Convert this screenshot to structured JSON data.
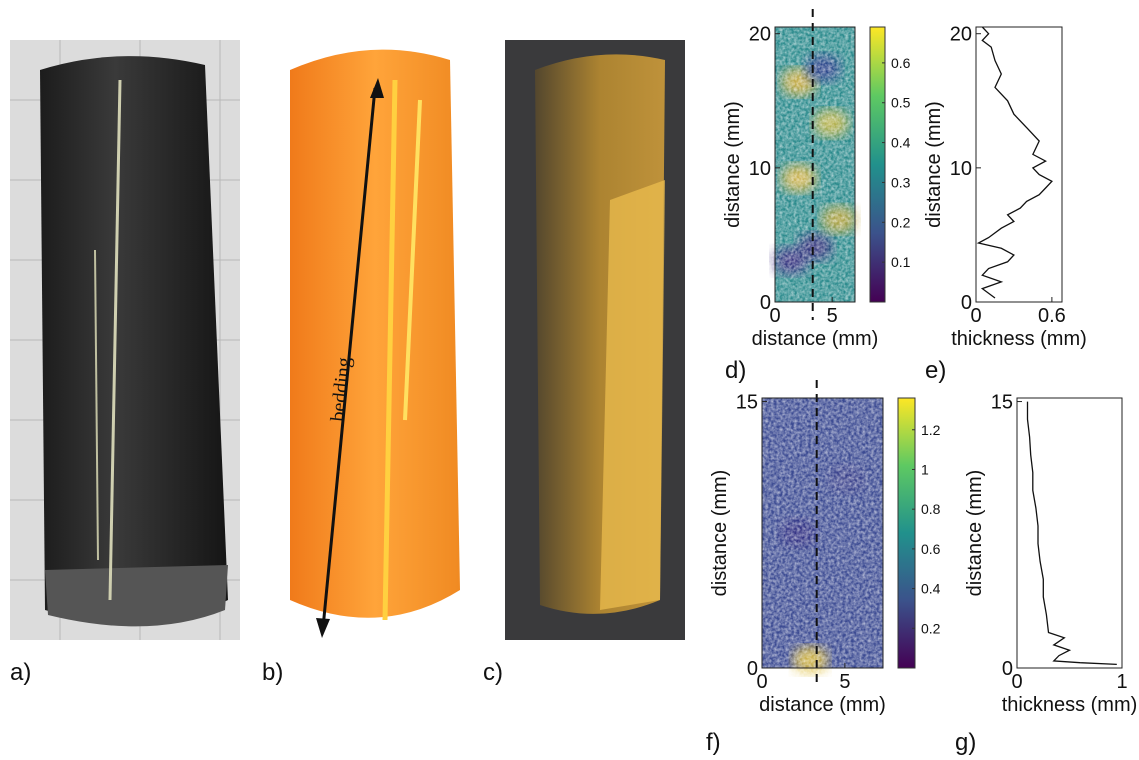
{
  "panel_labels": [
    "a)",
    "b)",
    "c)",
    "d)",
    "e)",
    "f)",
    "g)"
  ],
  "annotation": "bedding",
  "chart_data": [
    {
      "type": "heatmap",
      "xlabel": "distance (mm)",
      "ylabel": "distance (mm)",
      "xlim": [
        0,
        7
      ],
      "xticks": [
        0,
        5
      ],
      "ylim": [
        0,
        20.5
      ],
      "yticks": [
        0,
        10,
        20
      ],
      "clim": [
        0,
        0.69
      ],
      "cticks": [
        0.1,
        0.2,
        0.3,
        0.4,
        0.5,
        0.6
      ],
      "dashed_x": 3.3
    },
    {
      "type": "line",
      "xlabel": "thickness (mm)",
      "ylabel": "distance (mm)",
      "xlim": [
        0,
        0.68
      ],
      "xticks": [
        0,
        0.6
      ],
      "ylim": [
        0,
        20.5
      ],
      "yticks": [
        0,
        10,
        20
      ],
      "x": [
        0.15,
        0.05,
        0.2,
        0.05,
        0.1,
        0.25,
        0.3,
        0.2,
        0.02,
        0.1,
        0.2,
        0.3,
        0.25,
        0.35,
        0.4,
        0.5,
        0.55,
        0.6,
        0.5,
        0.45,
        0.55,
        0.45,
        0.5,
        0.4,
        0.3,
        0.25,
        0.15,
        0.2,
        0.15,
        0.12,
        0.05,
        0.1,
        0.05
      ],
      "y": [
        0.3,
        1,
        1.5,
        2,
        2.5,
        3,
        3.5,
        4,
        4.4,
        4.8,
        5.5,
        6,
        6.5,
        7,
        7.5,
        8,
        8.5,
        9,
        9.5,
        10,
        10.5,
        11,
        12,
        13,
        14,
        15,
        16,
        17,
        18,
        19,
        19.5,
        20,
        20.5
      ]
    },
    {
      "type": "heatmap",
      "xlabel": "distance (mm)",
      "ylabel": "distance (mm)",
      "xlim": [
        0,
        7.3
      ],
      "xticks": [
        0,
        5
      ],
      "ylim": [
        0,
        15.2
      ],
      "yticks": [
        0,
        15
      ],
      "clim": [
        0,
        1.36
      ],
      "cticks": [
        0.2,
        0.4,
        0.6,
        0.8,
        1,
        1.2
      ],
      "dashed_x": 3.3
    },
    {
      "type": "line",
      "xlabel": "thickness (mm)",
      "ylabel": "distance (mm)",
      "xlim": [
        0,
        1
      ],
      "xticks": [
        0,
        1
      ],
      "ylim": [
        0,
        15.2
      ],
      "yticks": [
        0,
        15
      ],
      "x": [
        0.95,
        0.6,
        0.35,
        0.4,
        0.5,
        0.35,
        0.45,
        0.3,
        0.28,
        0.25,
        0.25,
        0.22,
        0.2,
        0.2,
        0.18,
        0.15,
        0.15,
        0.13,
        0.12,
        0.1,
        0.1
      ],
      "y": [
        0.2,
        0.3,
        0.4,
        0.7,
        1,
        1.3,
        1.7,
        2,
        3,
        4,
        5,
        6,
        7,
        8,
        9,
        10,
        11,
        12,
        13,
        14,
        15
      ]
    }
  ]
}
